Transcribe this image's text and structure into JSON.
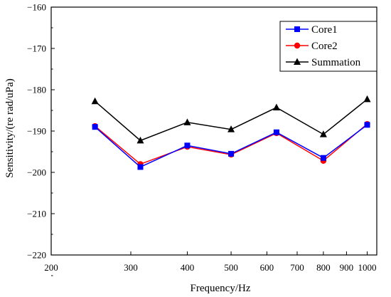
{
  "chart_data": {
    "type": "line",
    "title": "",
    "xlabel": "Frequency/Hz",
    "ylabel": "Sensitivity/(re rad/uPa)",
    "x_scale": "log",
    "xlim": [
      200,
      1050
    ],
    "ylim": [
      -220,
      -160
    ],
    "x_ticks": [
      200,
      300,
      400,
      500,
      600,
      700,
      800,
      900,
      1000
    ],
    "y_ticks": [
      -160,
      -170,
      -180,
      -190,
      -200,
      -210,
      -220
    ],
    "grid": false,
    "legend_position": "top-right",
    "x": [
      250,
      315,
      400,
      500,
      630,
      800,
      1000
    ],
    "series": [
      {
        "name": "Core1",
        "color": "#0000ff",
        "marker": "square",
        "values": [
          -189.0,
          -198.7,
          -193.5,
          -195.5,
          -190.3,
          -196.5,
          -188.5
        ]
      },
      {
        "name": "Core2",
        "color": "#ff0000",
        "marker": "circle",
        "values": [
          -188.8,
          -198.0,
          -193.8,
          -195.7,
          -190.5,
          -197.2,
          -188.3
        ]
      },
      {
        "name": "Summation",
        "color": "#000000",
        "marker": "triangle",
        "values": [
          -182.8,
          -192.3,
          -187.9,
          -189.6,
          -184.3,
          -190.8,
          -182.3
        ]
      }
    ]
  }
}
